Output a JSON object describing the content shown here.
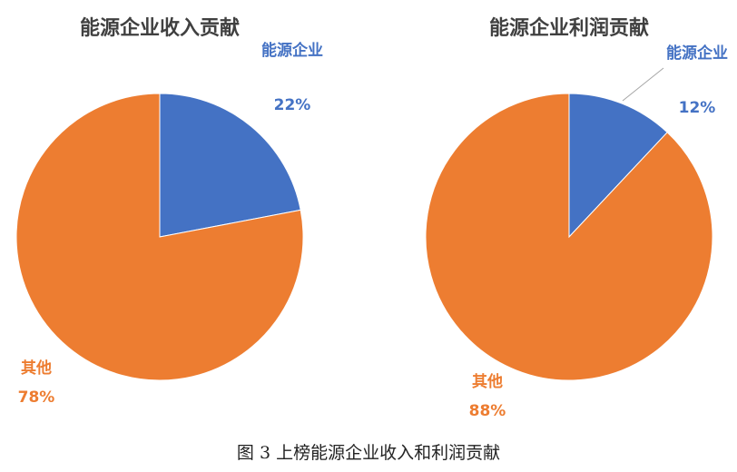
{
  "chart_data": [
    {
      "type": "pie",
      "title": "能源企业收入贡献",
      "categories": [
        "能源企业",
        "其他"
      ],
      "values": [
        22,
        78
      ],
      "value_labels": [
        "22%",
        "78%"
      ],
      "colors": [
        "#4472c4",
        "#ed7d31"
      ]
    },
    {
      "type": "pie",
      "title": "能源企业利润贡献",
      "categories": [
        "能源企业",
        "其他"
      ],
      "values": [
        12,
        88
      ],
      "value_labels": [
        "12%",
        "88%"
      ],
      "colors": [
        "#4472c4",
        "#ed7d31"
      ]
    }
  ],
  "caption": "图 3 上榜能源企业收入和利润贡献"
}
